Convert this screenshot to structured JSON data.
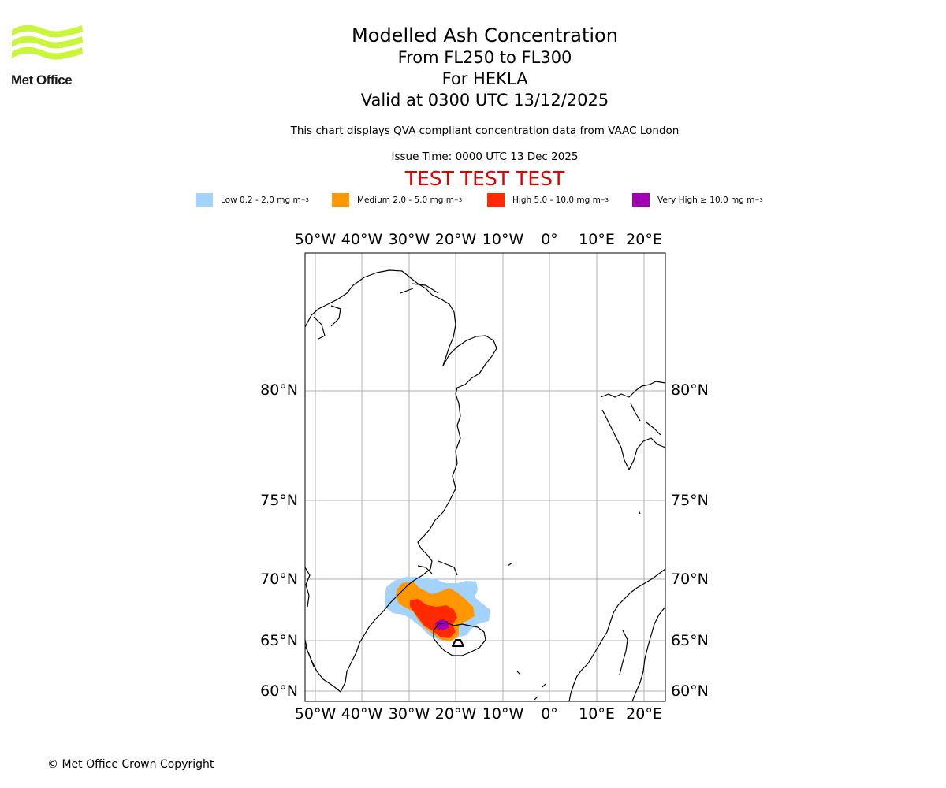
{
  "logo": {
    "text": "Met Office",
    "colors": {
      "wave": "#c9f53b",
      "text": "#1a1a1a"
    }
  },
  "title": {
    "main": "Modelled Ash Concentration",
    "levels": "From FL250 to FL300",
    "volcano": "For HEKLA",
    "valid": "Valid at 0300 UTC 13/12/2025"
  },
  "subtitle": "This chart displays QVA compliant concentration data from VAAC London",
  "issue_time": "Issue Time: 0000 UTC 13 Dec 2025",
  "test_banner": "TEST TEST TEST",
  "legend": [
    {
      "label": "Low 0.2 - 2.0 mg m",
      "sup": "−3",
      "color": "#a3d3fa"
    },
    {
      "label": "Medium 2.0 - 5.0 mg m",
      "sup": "−3",
      "color": "#ff9800"
    },
    {
      "label": "High 5.0 - 10.0 mg m",
      "sup": "−3",
      "color": "#ff2a00"
    },
    {
      "label": "Very High  ≥  10.0 mg m",
      "sup": "−3",
      "color": "#a000b4"
    }
  ],
  "map": {
    "lon_ticks": [
      "50°W",
      "40°W",
      "30°W",
      "20°W",
      "10°W",
      "0°",
      "10°E",
      "20°E"
    ],
    "lat_ticks": [
      "80°N",
      "75°N",
      "70°N",
      "65°N",
      "60°N"
    ],
    "colors": {
      "grid": "#b0b0b0",
      "coast": "#000000",
      "frame": "#000000"
    }
  },
  "copyright": "© Met Office Crown Copyright"
}
